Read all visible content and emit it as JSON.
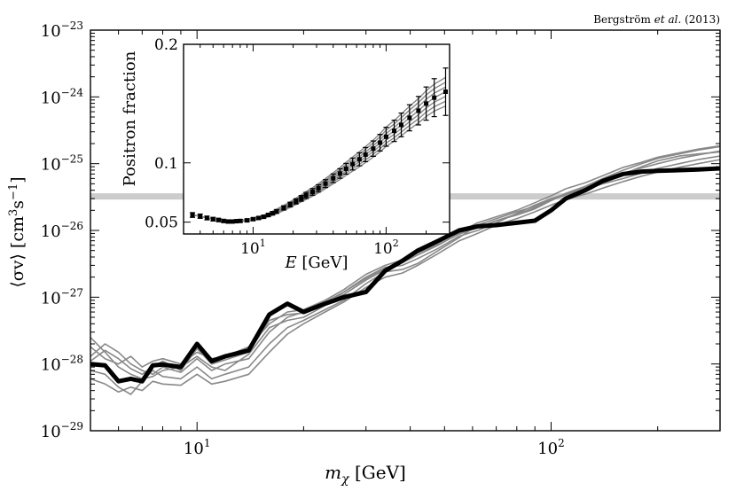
{
  "chart_data": [
    {
      "type": "line",
      "credit": {
        "author": "Bergström",
        "etal": "et al.",
        "year": "(2013)"
      },
      "xlabel": {
        "symbol": "m",
        "subscript": "χ",
        "unit": " [GeV]"
      },
      "ylabel": {
        "main": "⟨σv⟩ [cm",
        "sup1": "3",
        "mid": "s",
        "sup2": "−1",
        "end": "]"
      },
      "xscale": "log",
      "yscale": "log",
      "xlim": [
        5,
        300
      ],
      "ylim": [
        1e-29,
        1e-23
      ],
      "x_ticks": [
        {
          "value": 10,
          "base": "10",
          "exp": "1"
        },
        {
          "value": 100,
          "base": "10",
          "exp": "2"
        }
      ],
      "y_ticks": [
        {
          "value": 1e-29,
          "base": "10",
          "exp": "−29"
        },
        {
          "value": 1e-28,
          "base": "10",
          "exp": "−28"
        },
        {
          "value": 1e-27,
          "base": "10",
          "exp": "−27"
        },
        {
          "value": 1e-26,
          "base": "10",
          "exp": "−26"
        },
        {
          "value": 1e-25,
          "base": "10",
          "exp": "−25"
        },
        {
          "value": 1e-24,
          "base": "10",
          "exp": "−24"
        },
        {
          "value": 1e-23,
          "base": "10",
          "exp": "−23"
        }
      ],
      "band": {
        "y_low": 2.9e-26,
        "y_high": 3.6e-26,
        "color": "#cccccc"
      },
      "x": [
        5,
        5.5,
        6,
        6.5,
        7,
        7.5,
        8,
        9,
        10,
        11,
        12,
        14,
        16,
        18,
        20,
        23,
        26,
        30,
        34,
        38,
        42,
        48,
        55,
        62,
        70,
        80,
        90,
        100,
        110,
        125,
        140,
        160,
        180,
        200,
        230,
        260,
        300
      ],
      "main_series": {
        "values": [
          1e-28,
          9.5e-29,
          5.5e-29,
          6e-29,
          5.5e-29,
          9.5e-29,
          9.8e-29,
          9e-29,
          2e-28,
          1.1e-28,
          1.3e-28,
          1.6e-28,
          5.5e-28,
          8e-28,
          6e-28,
          8e-28,
          1e-27,
          1.2e-27,
          2.5e-27,
          3.5e-27,
          5e-27,
          7e-27,
          1e-26,
          1.15e-26,
          1.2e-26,
          1.3e-26,
          1.4e-26,
          2e-26,
          3e-26,
          4e-26,
          5.5e-26,
          7e-26,
          7.6e-26,
          7.8e-26,
          8e-26,
          8.2e-26,
          8.5e-26
        ],
        "color": "#000000"
      },
      "secondary_series_color": "#888888",
      "secondary_series": [
        {
          "values": [
            1.3e-28,
            2e-28,
            1.5e-28,
            1e-28,
            8e-29,
            7e-29,
            9e-29,
            7.5e-29,
            1.2e-28,
            8e-29,
            1e-28,
            1.2e-28,
            3e-28,
            5e-28,
            6e-28,
            8e-28,
            1.1e-27,
            1.8e-27,
            2.6e-27,
            3.4e-27,
            4.6e-27,
            6.2e-27,
            8.8e-27,
            1.1e-26,
            1.4e-26,
            1.7e-26,
            2.1e-26,
            2.8e-26,
            3.6e-26,
            4.6e-26,
            6e-26,
            8e-26,
            1e-25,
            1.2e-25,
            1.4e-25,
            1.6e-25,
            1.8e-25
          ]
        },
        {
          "values": [
            2.5e-28,
            1.5e-28,
            9e-29,
            7e-29,
            6e-29,
            6.5e-29,
            8e-29,
            9e-29,
            1.3e-28,
            9e-29,
            8e-29,
            1.4e-28,
            3.5e-28,
            4.5e-28,
            5e-28,
            7.5e-28,
            1.2e-27,
            2e-27,
            2.8e-27,
            3e-27,
            3.8e-27,
            5.4e-27,
            8.2e-27,
            1e-26,
            1.3e-26,
            1.8e-26,
            2.4e-26,
            3e-26,
            3.5e-26,
            4e-26,
            5.5e-26,
            7e-26,
            9e-26,
            1.1e-25,
            1.3e-25,
            1.4e-25,
            1.5e-25
          ]
        },
        {
          "values": [
            8e-29,
            7e-29,
            4.5e-29,
            3.5e-29,
            5.5e-29,
            8e-29,
            6.5e-29,
            6e-29,
            9e-29,
            6e-29,
            7e-29,
            9e-29,
            2e-28,
            3.5e-28,
            4.5e-28,
            6.5e-28,
            9e-28,
            1.6e-27,
            2.4e-27,
            2.6e-27,
            3.2e-27,
            5e-27,
            7.8e-27,
            1.2e-26,
            1.5e-26,
            1.9e-26,
            2.3e-26,
            2.9e-26,
            3.4e-26,
            4.2e-26,
            5e-26,
            6e-26,
            7.2e-26,
            8.5e-26,
            1e-25,
            1.15e-25,
            1.3e-25
          ]
        },
        {
          "values": [
            1.8e-28,
            1.2e-28,
            1e-28,
            1.3e-28,
            9e-29,
            1.1e-28,
            1.2e-28,
            1e-28,
            1.5e-28,
            1.2e-28,
            1.3e-28,
            1.8e-28,
            4e-28,
            6e-28,
            6.5e-28,
            9e-28,
            1.3e-27,
            2.2e-27,
            3e-27,
            3.6e-27,
            4.8e-27,
            6.8e-27,
            9.5e-27,
            1.3e-26,
            1.6e-26,
            2e-26,
            2.6e-26,
            3.3e-26,
            4.2e-26,
            5.2e-26,
            6.6e-26,
            8.8e-26,
            1.05e-25,
            1.25e-25,
            1.45e-25,
            1.65e-25,
            1.85e-25
          ]
        },
        {
          "values": [
            6e-29,
            5e-29,
            3.8e-29,
            4.5e-29,
            4e-29,
            5.5e-29,
            5e-29,
            4.8e-29,
            7e-29,
            5e-29,
            5.5e-29,
            7e-29,
            1.5e-28,
            2.8e-28,
            4e-28,
            6e-28,
            8.5e-28,
            1.4e-27,
            2e-27,
            2.3e-27,
            3e-27,
            4.5e-27,
            7e-27,
            9e-27,
            1.2e-26,
            1.5e-26,
            1.9e-26,
            2.4e-26,
            2.9e-26,
            3.5e-26,
            4.3e-26,
            5.4e-26,
            6.5e-26,
            7.5e-26,
            8.8e-26,
            1e-25,
            1.15e-25
          ]
        },
        {
          "values": [
            1.1e-28,
            1.6e-28,
            1.2e-28,
            8.5e-29,
            7e-29,
            9e-29,
            1.1e-28,
            8e-29,
            1.7e-28,
            1e-28,
            1.15e-28,
            1.5e-28,
            4.5e-28,
            5.5e-28,
            5.8e-28,
            8.5e-28,
            1.2e-27,
            1.9e-27,
            2.7e-27,
            3.3e-27,
            4.3e-27,
            6e-27,
            9e-27,
            1.1e-26,
            1.4e-26,
            1.75e-26,
            2.2e-26,
            2.8e-26,
            3.5e-26,
            4.4e-26,
            5.6e-26,
            7.2e-26,
            8.6e-26,
            1e-25,
            1.2e-25,
            1.35e-25,
            1.55e-25
          ]
        }
      ],
      "inset": {
        "type": "scatter",
        "xlabel": {
          "symbol": "E",
          "unit": " [GeV]"
        },
        "ylabel": "Positron fraction",
        "xscale": "log",
        "xlim": [
          3,
          300
        ],
        "ylim": [
          0.04,
          0.2
        ],
        "x_ticks": [
          {
            "value": 10,
            "base": "10",
            "exp": "1"
          },
          {
            "value": 100,
            "base": "10",
            "exp": "2"
          }
        ],
        "y_ticks": [
          {
            "value": 0.05,
            "label": "0.05"
          },
          {
            "value": 0.1,
            "label": "0.1"
          },
          {
            "value": 0.2,
            "label": "0.2"
          }
        ],
        "points": {
          "x": [
            3.5,
            4,
            4.5,
            5,
            5.5,
            6,
            6.5,
            7,
            7.5,
            8,
            9,
            10,
            11,
            12,
            13,
            14,
            15,
            17,
            19,
            21,
            23,
            25,
            28,
            31,
            35,
            40,
            45,
            50,
            56,
            63,
            70,
            80,
            90,
            100,
            115,
            130,
            150,
            175,
            200,
            230,
            280
          ],
          "y": [
            0.056,
            0.055,
            0.0535,
            0.0525,
            0.0518,
            0.051,
            0.0505,
            0.0505,
            0.0508,
            0.051,
            0.0515,
            0.0525,
            0.0535,
            0.0545,
            0.056,
            0.0575,
            0.059,
            0.062,
            0.0648,
            0.0675,
            0.07,
            0.0725,
            0.0755,
            0.0785,
            0.0825,
            0.087,
            0.091,
            0.095,
            0.099,
            0.103,
            0.107,
            0.112,
            0.117,
            0.122,
            0.127,
            0.132,
            0.138,
            0.144,
            0.15,
            0.155,
            0.16
          ],
          "err": [
            0.002,
            0.0018,
            0.0016,
            0.0015,
            0.0014,
            0.0013,
            0.0013,
            0.0012,
            0.0012,
            0.0012,
            0.0012,
            0.0012,
            0.0012,
            0.0013,
            0.0014,
            0.0015,
            0.0016,
            0.0018,
            0.002,
            0.0022,
            0.0024,
            0.0026,
            0.0028,
            0.003,
            0.0033,
            0.0036,
            0.004,
            0.0045,
            0.005,
            0.0055,
            0.006,
            0.0065,
            0.007,
            0.008,
            0.009,
            0.01,
            0.011,
            0.012,
            0.014,
            0.016,
            0.02
          ],
          "color": "#000000"
        },
        "model_color": "#888888",
        "model_offsets": [
          -0.008,
          -0.004,
          0.0,
          0.004,
          0.008,
          0.012,
          -0.012
        ]
      }
    }
  ]
}
